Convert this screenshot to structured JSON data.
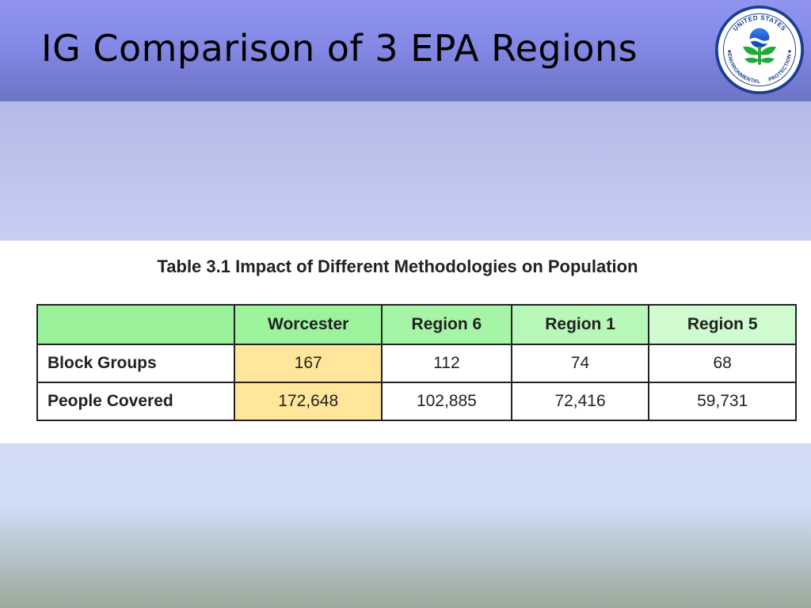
{
  "slide": {
    "title": "IG Comparison of 3 EPA Regions",
    "logo": {
      "icon": "epa-seal-icon",
      "text_top": "UNITED STATES",
      "text_left": "ENVIRONMENTAL",
      "text_bottom": "PROTECTION AGENCY"
    }
  },
  "table": {
    "caption": "Table 3.1 Impact of Different Methodologies on Population",
    "header_color": "#9cf59c",
    "highlight_color": "#ffe69a",
    "columns": [
      "",
      "Worcester",
      "Region 6",
      "Region 1",
      "Region 5"
    ],
    "rows": [
      {
        "label": "Block Groups",
        "values": [
          "167",
          "112",
          "74",
          "68"
        ]
      },
      {
        "label": "People Covered",
        "values": [
          "172,648",
          "102,885",
          "72,416",
          "59,731"
        ]
      }
    ]
  }
}
